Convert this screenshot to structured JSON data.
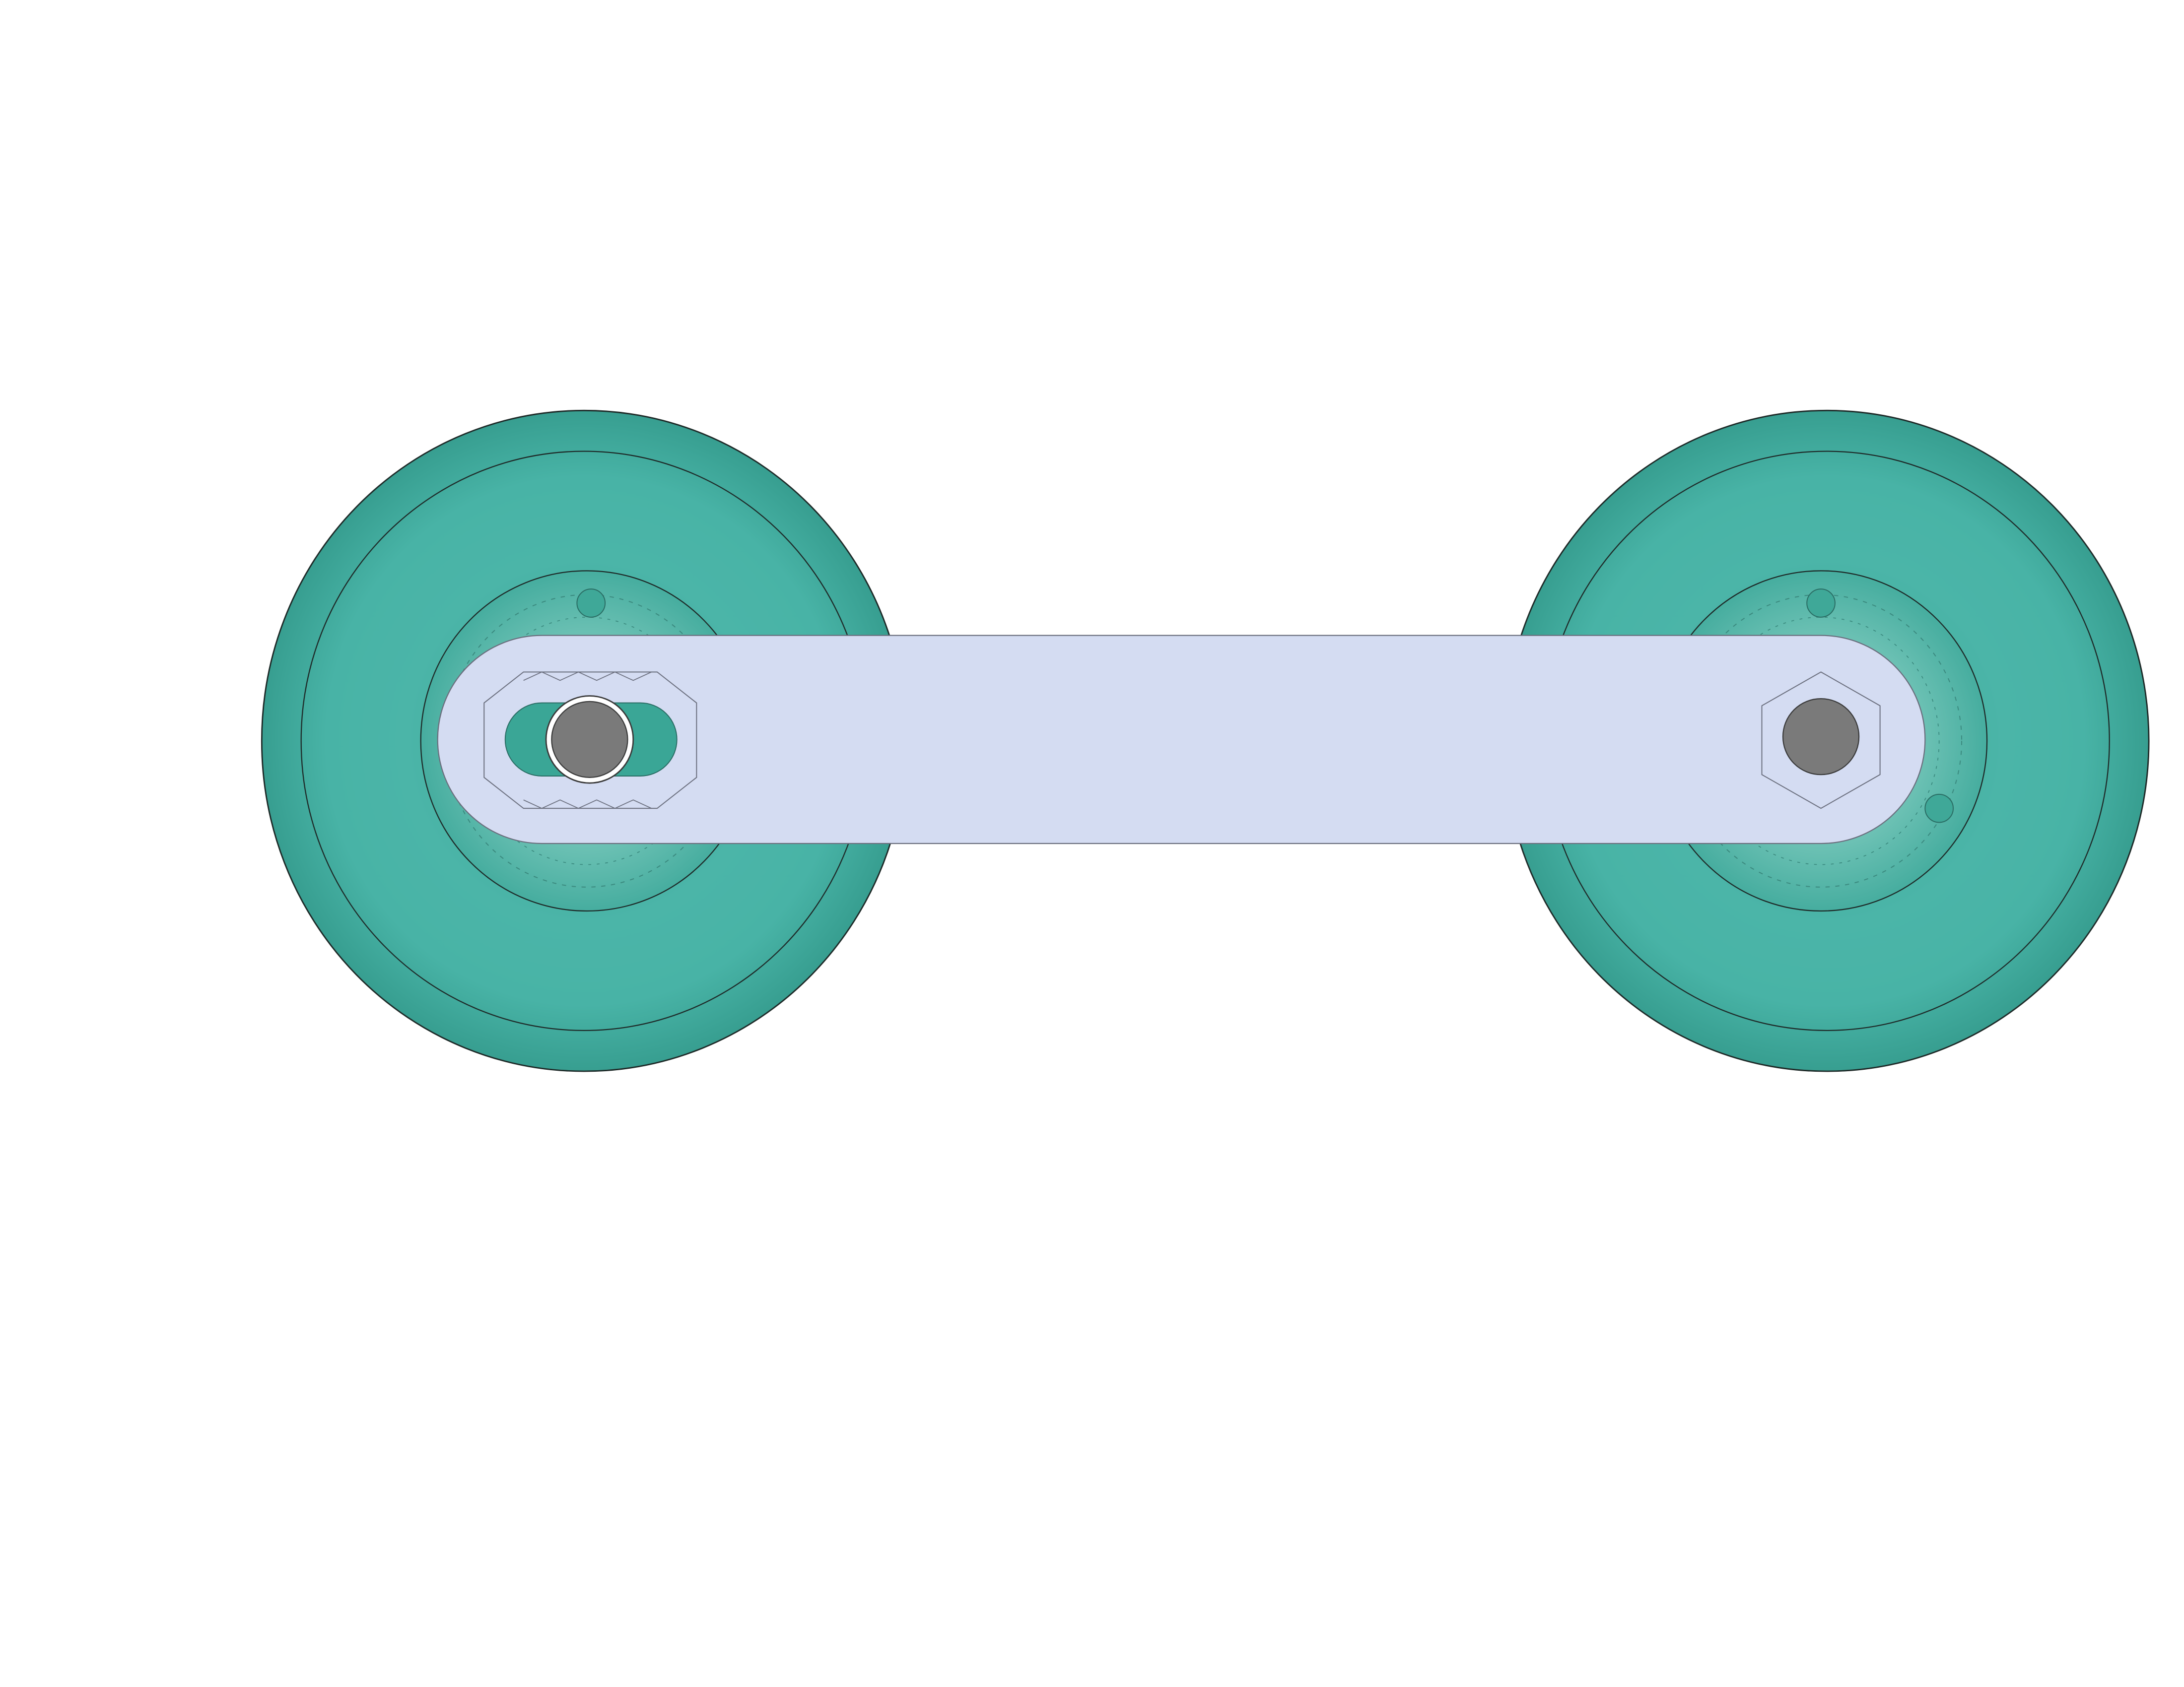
{
  "colors": {
    "background": "#ffffff",
    "wheel": "#48b3a6",
    "wheel_dark": "#2f9486",
    "wheel_light": "#5cc9b9",
    "arm": "#d4dcf2",
    "arm_outline": "#6b6f7e",
    "pin": "#7a7a7a",
    "outline": "#1e2a28"
  },
  "parts": {
    "left_wheel": {
      "icon": "wheel-icon"
    },
    "right_wheel": {
      "icon": "wheel-icon"
    },
    "link_arm": {
      "icon": "link-arm-icon"
    },
    "slot_pin": {
      "icon": "axle-pin-icon"
    },
    "fixed_pin": {
      "icon": "axle-pin-icon"
    }
  }
}
